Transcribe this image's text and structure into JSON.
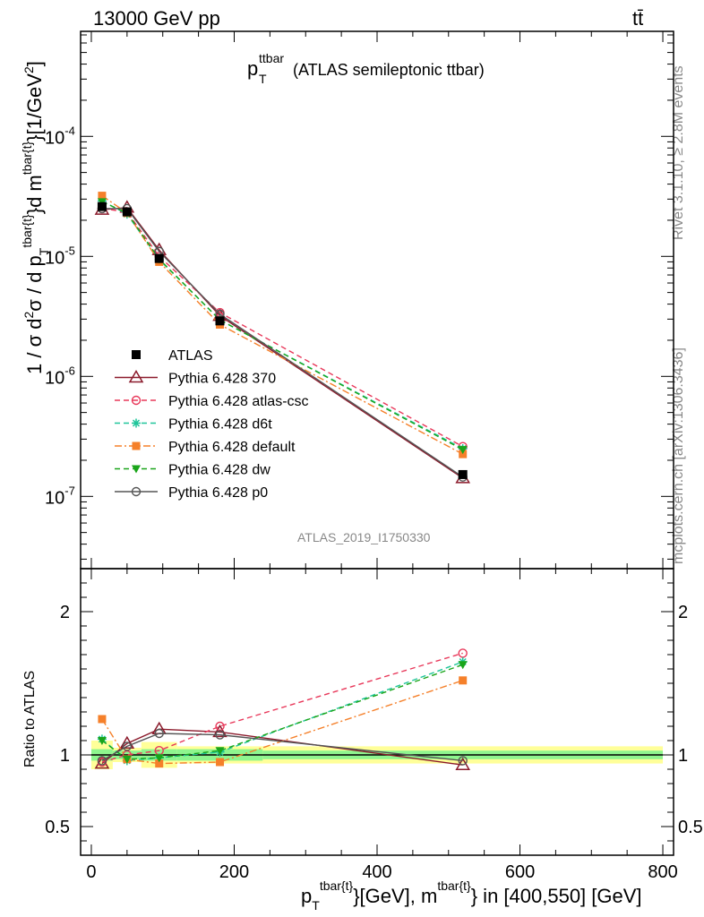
{
  "header": {
    "energy_label": "13000 GeV pp",
    "process_label": "tt̄"
  },
  "side_text": {
    "rivet": "Rivet 3.1.10, ≥ 2.8M events",
    "source": "mcplots.cern.ch [arXiv:1306.3436]"
  },
  "analysis_tag": "ATLAS_2019_I1750330",
  "colors": {
    "ATLAS": "#000000",
    "p370": "#8b1a2b",
    "atlas_csc": "#e8385a",
    "d6t": "#1fc59a",
    "default": "#f5802a",
    "dw": "#1aa51a",
    "p0": "#555555",
    "band_green": "#8ef58e",
    "band_yellow": "#ffff99"
  },
  "chart_data": [
    {
      "type": "line",
      "panel": "main",
      "title_main": "p",
      "title_sub": "T",
      "title_sup": "ttbar",
      "title_rest": "(ATLAS semileptonic ttbar)",
      "ylabel": "1 / σ d²σ / d p_T^{tbar{t}}d m^{tbar{t}}[1/GeV²]",
      "y_scale": "log",
      "ylim": [
        2.5e-08,
        0.00075
      ],
      "xlim": [
        -15,
        815
      ],
      "y_tick_labels": [
        "10^-7",
        "10^-6",
        "10^-5",
        "10^-4"
      ],
      "x": [
        15,
        50,
        95,
        180,
        520
      ],
      "series": [
        {
          "name": "ATLAS",
          "key": "ATLAS",
          "marker": "square-filled",
          "values": [
            2.6e-05,
            2.35e-05,
            9.6e-06,
            2.9e-06,
            1.52e-07
          ]
        },
        {
          "name": "Pythia 6.428 370",
          "key": "p370",
          "marker": "triangle-open",
          "dash": "",
          "values": [
            2.45e-05,
            2.55e-05,
            1.13e-05,
            3.2e-06,
            1.42e-07
          ]
        },
        {
          "name": "Pythia 6.428 atlas-csc",
          "key": "atlas_csc",
          "marker": "circle-open",
          "dash": "6,4",
          "values": [
            2.5e-05,
            2.35e-05,
            1e-05,
            3.4e-06,
            2.6e-07
          ]
        },
        {
          "name": "Pythia 6.428 d6t",
          "key": "d6t",
          "marker": "star",
          "dash": "6,4",
          "values": [
            2.9e-05,
            2.25e-05,
            9.4e-06,
            2.95e-06,
            2.5e-07
          ]
        },
        {
          "name": "Pythia 6.428 default",
          "key": "default",
          "marker": "square-filled-small",
          "dash": "8,3,2,3",
          "values": [
            3.2e-05,
            2.3e-05,
            9e-06,
            2.7e-06,
            2.25e-07
          ]
        },
        {
          "name": "Pythia 6.428 dw",
          "key": "dw",
          "marker": "triangle-down-filled",
          "dash": "6,4",
          "values": [
            2.85e-05,
            2.3e-05,
            9.5e-06,
            2.95e-06,
            2.45e-07
          ]
        },
        {
          "name": "Pythia 6.428 p0",
          "key": "p0",
          "marker": "circle-open",
          "dash": "",
          "values": [
            2.5e-05,
            2.5e-05,
            1.1e-05,
            3.3e-06,
            1.45e-07
          ]
        }
      ]
    },
    {
      "type": "line",
      "panel": "ratio",
      "ylabel": "Ratio to ATLAS",
      "ylim": [
        0.3,
        2.3
      ],
      "xlim": [
        -15,
        815
      ],
      "y_tick_labels": [
        "0.5",
        "1",
        "2"
      ],
      "x_tick_labels": [
        "0",
        "200",
        "400",
        "600",
        "800"
      ],
      "xlabel": "p_T^{tbar{t}}[GeV], m^{tbar{t}} in [400,550] [GeV]",
      "x": [
        15,
        50,
        95,
        180,
        520
      ],
      "bins": [
        [
          0,
          30
        ],
        [
          30,
          70
        ],
        [
          70,
          120
        ],
        [
          120,
          240
        ],
        [
          240,
          800
        ]
      ],
      "band_green": [
        0.04,
        0.03,
        0.04,
        0.04,
        0.03
      ],
      "band_yellow": [
        0.1,
        0.05,
        0.09,
        0.06,
        0.06
      ],
      "series": [
        {
          "name": "Pythia 6.428 370",
          "key": "p370",
          "values": [
            0.94,
            1.08,
            1.18,
            1.16,
            0.93
          ]
        },
        {
          "name": "Pythia 6.428 atlas-csc",
          "key": "atlas_csc",
          "values": [
            0.95,
            1.0,
            1.03,
            1.2,
            1.71
          ]
        },
        {
          "name": "Pythia 6.428 d6t",
          "key": "d6t",
          "values": [
            1.11,
            0.96,
            0.98,
            1.02,
            1.65
          ]
        },
        {
          "name": "Pythia 6.428 default",
          "key": "default",
          "values": [
            1.25,
            0.97,
            0.94,
            0.95,
            1.52
          ]
        },
        {
          "name": "Pythia 6.428 dw",
          "key": "dw",
          "values": [
            1.1,
            0.97,
            0.98,
            1.03,
            1.63
          ]
        },
        {
          "name": "Pythia 6.428 p0",
          "key": "p0",
          "values": [
            0.96,
            1.06,
            1.15,
            1.14,
            0.96
          ]
        }
      ]
    }
  ]
}
